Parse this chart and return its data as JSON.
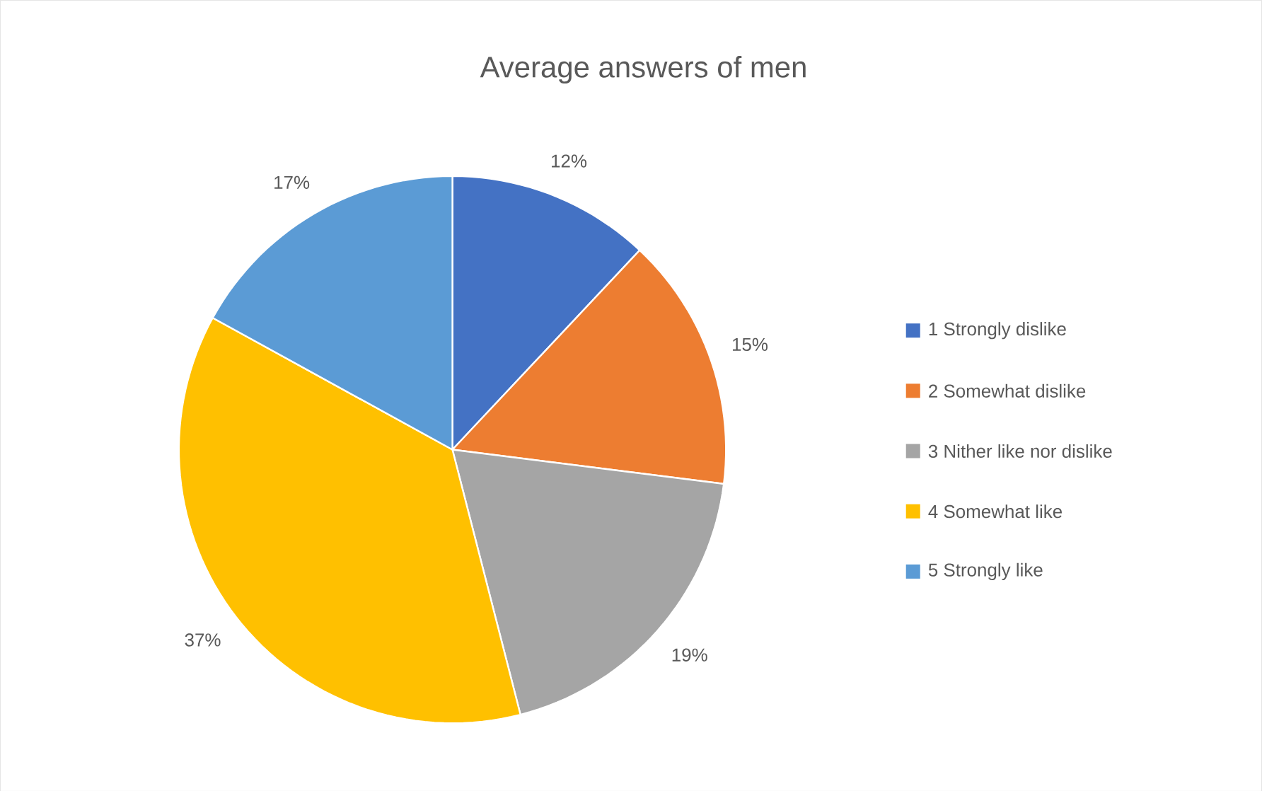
{
  "chart_data": {
    "type": "pie",
    "title": "Average answers of men",
    "categories": [
      "1 Strongly   dislike",
      "2 Somewhat dislike",
      "3 Nither like nor dislike",
      "4 Somewhat  like",
      "5 Strongly like"
    ],
    "values": [
      12,
      15,
      19,
      37,
      17
    ],
    "colors": [
      "#4472c4",
      "#ed7d31",
      "#a5a5a5",
      "#ffc000",
      "#5b9bd5"
    ],
    "value_labels": [
      "12%",
      "15%",
      "19%",
      "37%",
      "17%"
    ],
    "legend": "right"
  }
}
